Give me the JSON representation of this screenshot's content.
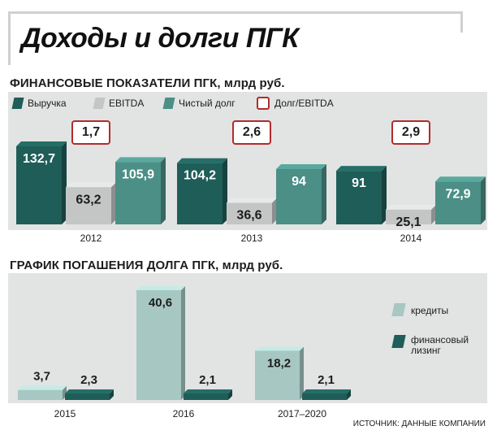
{
  "title": "Доходы и долги ПГК",
  "source": "ИСТОЧНИК: ДАННЫЕ КОМПАНИИ",
  "colors": {
    "revenue": "#1f5d58",
    "ebitda": "#c4c6c6",
    "net_debt": "#4b8f86",
    "ratio_border": "#b22b2b",
    "credits": "#a7c7c2",
    "leasing": "#1f5d58",
    "panel": "#e2e3e3"
  },
  "chart_data": [
    {
      "type": "bar",
      "title": "ФИНАНСОВЫЕ ПОКАЗАТЕЛИ ПГК, млрд руб.",
      "categories": [
        "2012",
        "2013",
        "2014"
      ],
      "series": [
        {
          "name": "Выручка",
          "values": [
            132.7,
            104.2,
            91
          ],
          "labels": [
            "132,7",
            "104,2",
            "91"
          ]
        },
        {
          "name": "EBITDA",
          "values": [
            63.2,
            36.6,
            25.1
          ],
          "labels": [
            "63,2",
            "36,6",
            "25,1"
          ]
        },
        {
          "name": "Чистый долг",
          "values": [
            105.9,
            94,
            72.9
          ],
          "labels": [
            "105,9",
            "94",
            "72,9"
          ]
        }
      ],
      "ratio": {
        "name": "Долг/EBITDA",
        "values": [
          1.7,
          2.6,
          2.9
        ],
        "labels": [
          "1,7",
          "2,6",
          "2,9"
        ]
      },
      "legend": "top"
    },
    {
      "type": "bar",
      "title": "ГРАФИК ПОГАШЕНИЯ ДОЛГА ПГК, млрд руб.",
      "categories": [
        "2015",
        "2016",
        "2017–2020"
      ],
      "series": [
        {
          "name": "кредиты",
          "values": [
            3.7,
            40.6,
            18.2
          ],
          "labels": [
            "3,7",
            "40,6",
            "18,2"
          ]
        },
        {
          "name": "финансовый лизинг",
          "values": [
            2.3,
            2.1,
            2.1
          ],
          "labels": [
            "2,3",
            "2,1",
            "2,1"
          ]
        }
      ],
      "legend": "right"
    }
  ]
}
